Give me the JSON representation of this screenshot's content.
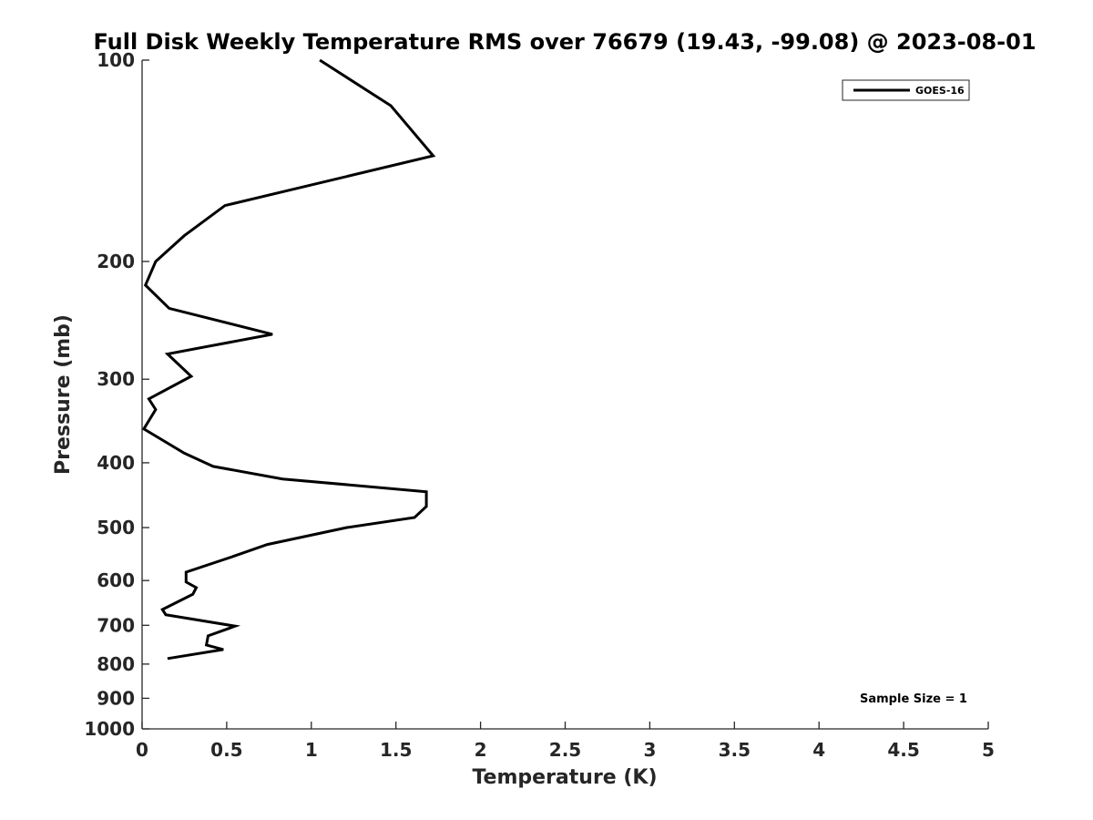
{
  "chart_data": {
    "type": "line",
    "title": "Full Disk Weekly Temperature RMS over 76679 (19.43, -99.08) @ 2023-08-01",
    "xlabel": "Temperature (K)",
    "ylabel": "Pressure (mb)",
    "xlim": [
      0,
      5
    ],
    "ylim": [
      100,
      1000
    ],
    "yscale": "log",
    "y_reversed": true,
    "xticks": [
      0,
      0.5,
      1,
      1.5,
      2,
      2.5,
      3,
      3.5,
      4,
      4.5,
      5
    ],
    "xtick_labels": [
      "0",
      "0.5",
      "1",
      "1.5",
      "2",
      "2.5",
      "3",
      "3.5",
      "4",
      "4.5",
      "5"
    ],
    "yticks": [
      100,
      200,
      300,
      400,
      500,
      600,
      700,
      800,
      900,
      1000
    ],
    "ytick_labels": [
      "100",
      "200",
      "300",
      "400",
      "500",
      "600",
      "700",
      "800",
      "900",
      "1000"
    ],
    "grid": false,
    "legend_position": "top-right",
    "series": [
      {
        "name": "GOES-16",
        "color": "#000000",
        "x": [
          1.05,
          1.47,
          1.72,
          0.49,
          0.25,
          0.08,
          0.02,
          0.16,
          0.77,
          0.15,
          0.29,
          0.04,
          0.08,
          0.01,
          0.25,
          0.42,
          0.83,
          1.68,
          1.68,
          1.61,
          1.21,
          0.74,
          0.54,
          0.26,
          0.26,
          0.32,
          0.3,
          0.12,
          0.14,
          0.55,
          0.39,
          0.38,
          0.48,
          0.15
        ],
        "y": [
          100,
          117,
          139,
          165,
          183,
          200,
          217,
          235,
          257,
          275,
          297,
          321,
          333,
          356,
          387,
          405,
          423,
          442,
          465,
          483,
          500,
          530,
          552,
          583,
          603,
          615,
          629,
          663,
          675,
          702,
          726,
          749,
          761,
          785
        ]
      }
    ],
    "annotations": [
      "Sample Size = 1"
    ]
  }
}
